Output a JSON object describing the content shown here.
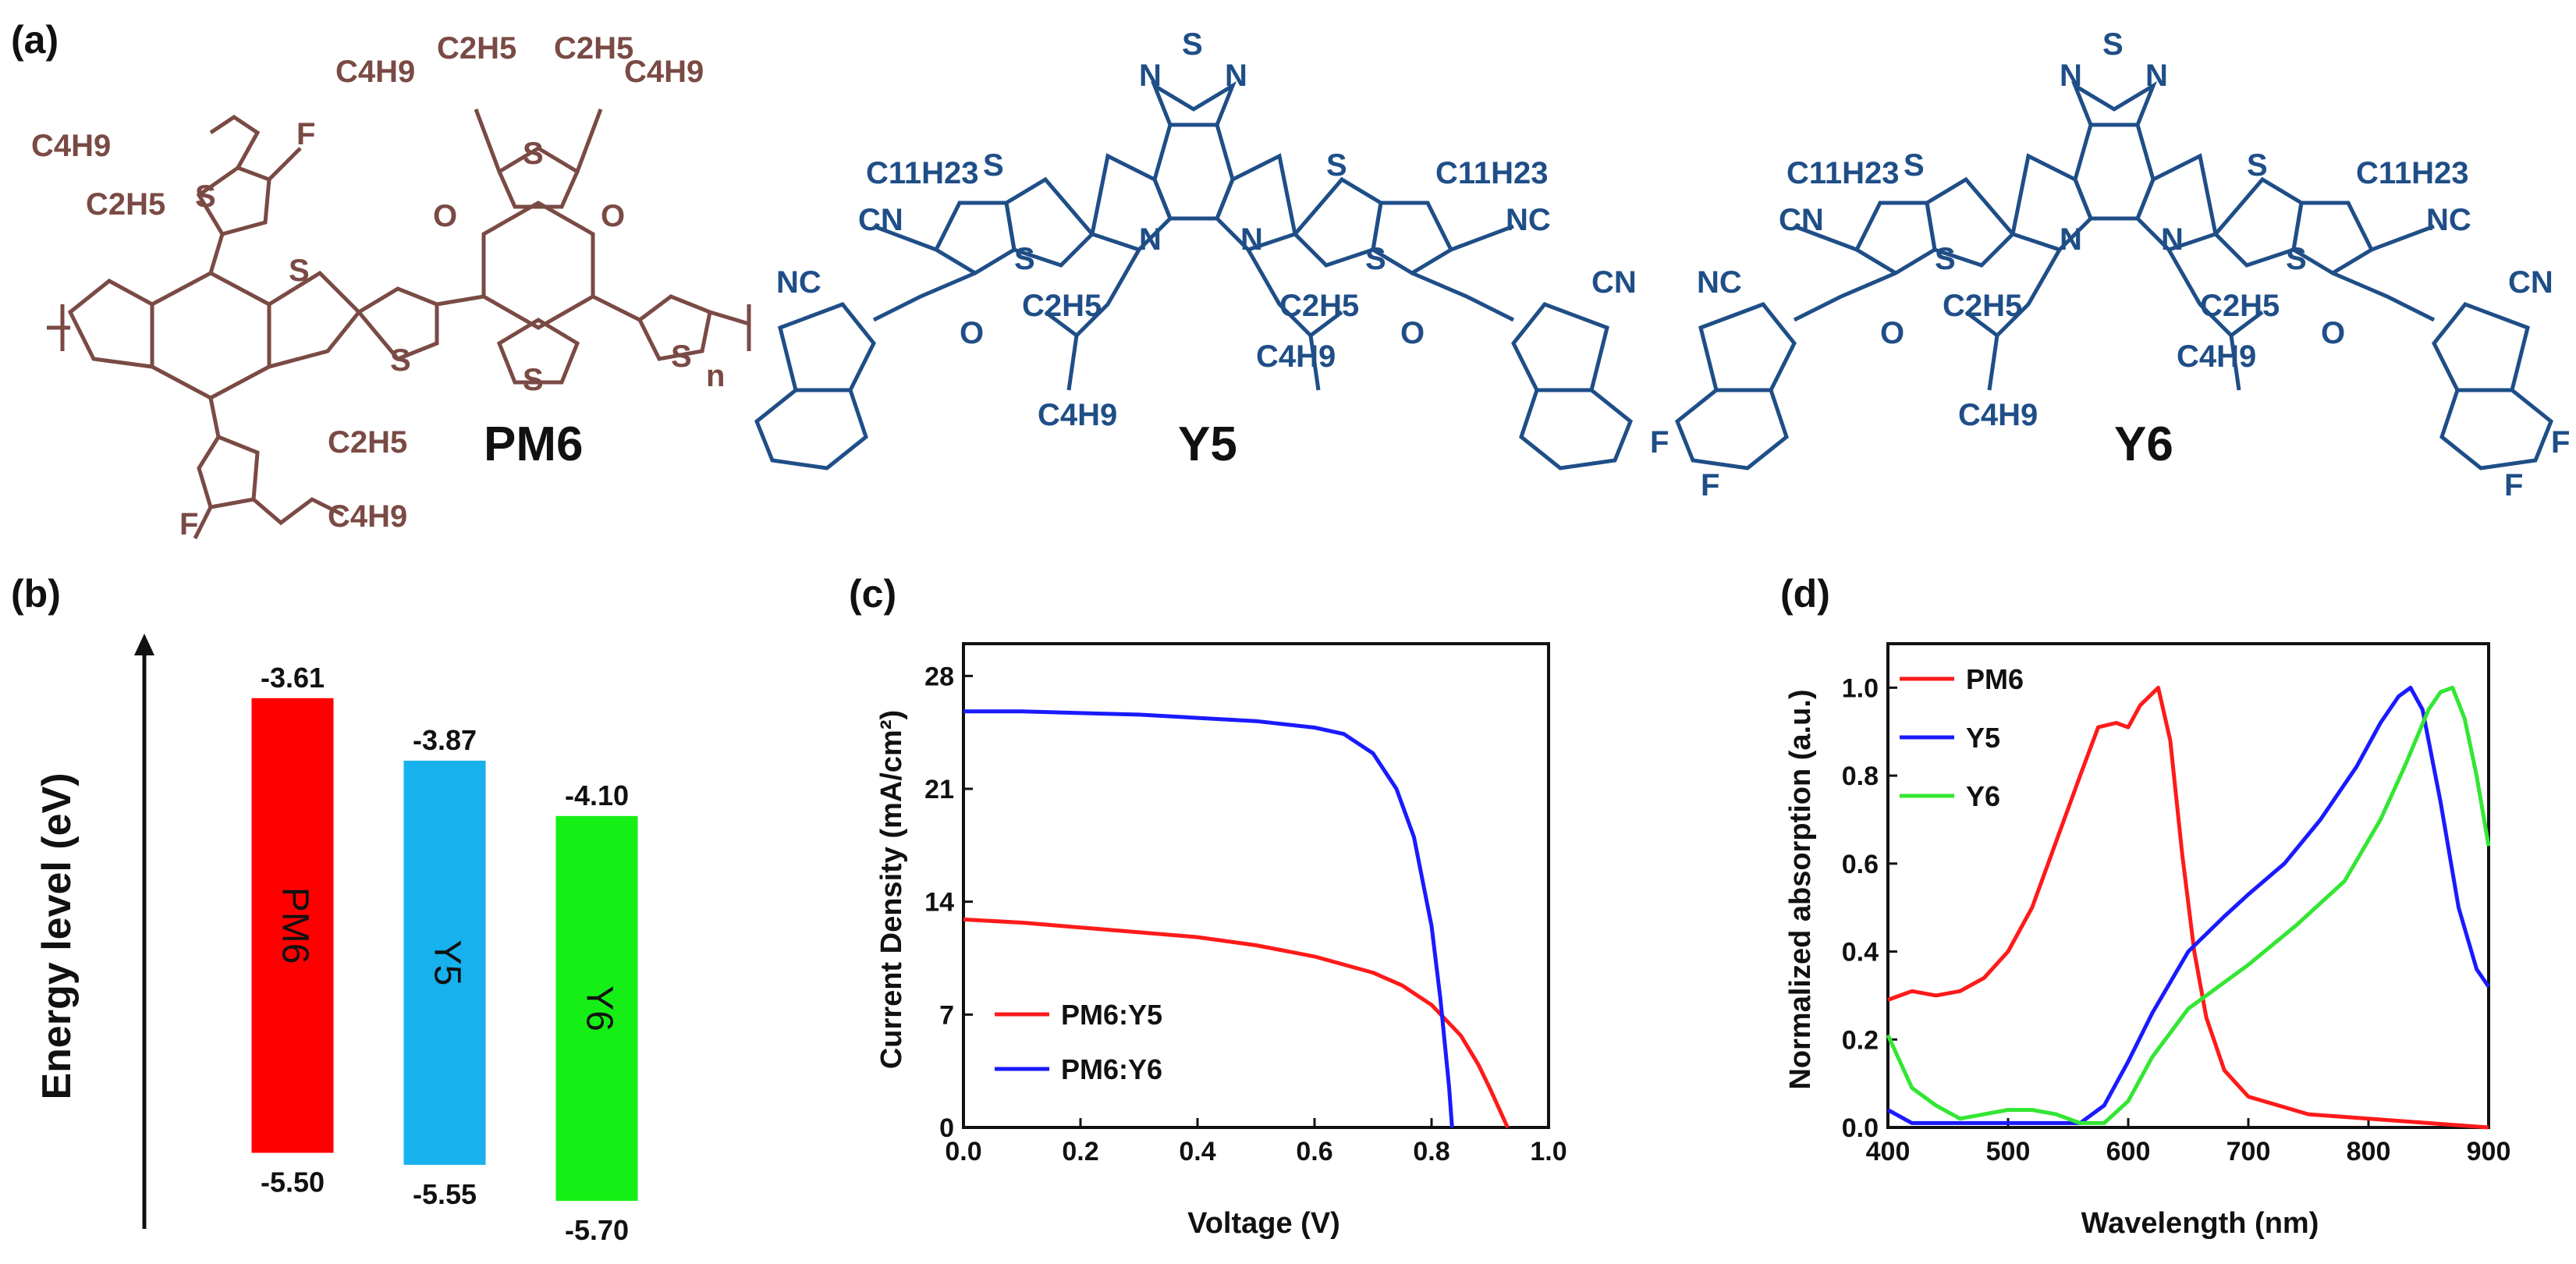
{
  "panels": {
    "a": "(a)",
    "b": "(b)",
    "c": "(c)",
    "d": "(d)"
  },
  "structures": {
    "pm6": {
      "name": "PM6",
      "color": "#7a4a44",
      "atoms": [
        "C4H9",
        "C2H5",
        "F",
        "S",
        "C4H9",
        "C2H5",
        "C2H5",
        "C4H9",
        "O",
        "O",
        "S",
        "S",
        "S",
        "S",
        "S",
        "F",
        "C2H5",
        "C4H9",
        "n"
      ]
    },
    "y5": {
      "name": "Y5",
      "color": "#1f4e87",
      "atoms": [
        "N",
        "S",
        "N",
        "C11H23",
        "C11H23",
        "CN",
        "NC",
        "NC",
        "CN",
        "S",
        "S",
        "S",
        "S",
        "N",
        "N",
        "C2H5",
        "C2H5",
        "C4H9",
        "C4H9",
        "O",
        "O"
      ]
    },
    "y6": {
      "name": "Y6",
      "color": "#1f4e87",
      "atoms": [
        "N",
        "S",
        "N",
        "C11H23",
        "C11H23",
        "CN",
        "NC",
        "NC",
        "CN",
        "S",
        "S",
        "S",
        "S",
        "N",
        "N",
        "C2H5",
        "C2H5",
        "C4H9",
        "C4H9",
        "O",
        "O",
        "F",
        "F",
        "F",
        "F"
      ]
    }
  },
  "chart_data": [
    {
      "panel": "(b)",
      "type": "bar",
      "ylabel": "Energy level (eV)",
      "categories": [
        "PM6",
        "Y5",
        "Y6"
      ],
      "lumo": [
        -3.61,
        -3.87,
        -4.1
      ],
      "homo": [
        -5.5,
        -5.55,
        -5.7
      ],
      "lumo_labels": [
        "-3.61",
        "-3.87",
        "-4.10"
      ],
      "homo_labels": [
        "-5.50",
        "-5.55",
        "-5.70"
      ],
      "colors": [
        "#ff0000",
        "#17b1ee",
        "#16ef16"
      ]
    },
    {
      "panel": "(c)",
      "type": "line",
      "xlabel": "Voltage (V)",
      "ylabel": "Current Density (mA/cm²)",
      "xlim": [
        0,
        1.0
      ],
      "ylim": [
        0,
        30
      ],
      "xticks": [
        "0.0",
        "0.2",
        "0.4",
        "0.6",
        "0.8",
        "1.0"
      ],
      "yticks": [
        "0",
        "7",
        "14",
        "21",
        "28"
      ],
      "series": [
        {
          "name": "PM6:Y5",
          "color": "#ff1a1a",
          "x": [
            0,
            0.1,
            0.2,
            0.3,
            0.4,
            0.5,
            0.6,
            0.7,
            0.75,
            0.8,
            0.85,
            0.88,
            0.9,
            0.92,
            0.93
          ],
          "y": [
            12.9,
            12.7,
            12.4,
            12.1,
            11.8,
            11.3,
            10.6,
            9.6,
            8.8,
            7.6,
            5.7,
            3.9,
            2.4,
            0.8,
            0
          ]
        },
        {
          "name": "PM6:Y6",
          "color": "#1a1aff",
          "x": [
            0,
            0.1,
            0.2,
            0.3,
            0.4,
            0.5,
            0.6,
            0.65,
            0.7,
            0.74,
            0.77,
            0.8,
            0.815,
            0.83,
            0.835
          ],
          "y": [
            25.8,
            25.8,
            25.7,
            25.6,
            25.4,
            25.2,
            24.8,
            24.4,
            23.2,
            21.0,
            18.0,
            12.5,
            8.0,
            2.5,
            0
          ]
        }
      ]
    },
    {
      "panel": "(d)",
      "type": "line",
      "xlabel": "Wavelength (nm)",
      "ylabel": "Normalized absorption (a.u.)",
      "xlim": [
        400,
        900
      ],
      "ylim": [
        0,
        1.1
      ],
      "xticks": [
        "400",
        "500",
        "600",
        "700",
        "800",
        "900"
      ],
      "yticks": [
        "0.0",
        "0.2",
        "0.4",
        "0.6",
        "0.8",
        "1.0"
      ],
      "series": [
        {
          "name": "PM6",
          "color": "#ff1a1a",
          "x": [
            400,
            420,
            440,
            460,
            480,
            500,
            520,
            540,
            560,
            575,
            590,
            600,
            610,
            625,
            635,
            645,
            655,
            665,
            680,
            700,
            750,
            800,
            850,
            900
          ],
          "y": [
            0.29,
            0.31,
            0.3,
            0.31,
            0.34,
            0.4,
            0.5,
            0.65,
            0.8,
            0.91,
            0.92,
            0.91,
            0.96,
            1.0,
            0.88,
            0.62,
            0.4,
            0.25,
            0.13,
            0.07,
            0.03,
            0.02,
            0.01,
            0.0
          ]
        },
        {
          "name": "Y5",
          "color": "#1a1aff",
          "x": [
            400,
            420,
            450,
            500,
            530,
            560,
            580,
            600,
            620,
            650,
            680,
            700,
            730,
            760,
            790,
            810,
            825,
            835,
            845,
            860,
            875,
            890,
            900
          ],
          "y": [
            0.04,
            0.01,
            0.01,
            0.01,
            0.01,
            0.01,
            0.05,
            0.15,
            0.26,
            0.4,
            0.48,
            0.53,
            0.6,
            0.7,
            0.82,
            0.92,
            0.98,
            1.0,
            0.95,
            0.74,
            0.5,
            0.36,
            0.32
          ]
        },
        {
          "name": "Y6",
          "color": "#33e633",
          "x": [
            400,
            410,
            420,
            440,
            460,
            480,
            500,
            520,
            540,
            560,
            580,
            600,
            620,
            650,
            680,
            700,
            740,
            780,
            810,
            830,
            850,
            860,
            870,
            880,
            890,
            900
          ],
          "y": [
            0.21,
            0.15,
            0.09,
            0.05,
            0.02,
            0.03,
            0.04,
            0.04,
            0.03,
            0.01,
            0.01,
            0.06,
            0.16,
            0.27,
            0.33,
            0.37,
            0.46,
            0.56,
            0.7,
            0.82,
            0.95,
            0.99,
            1.0,
            0.93,
            0.8,
            0.64
          ]
        }
      ]
    }
  ]
}
